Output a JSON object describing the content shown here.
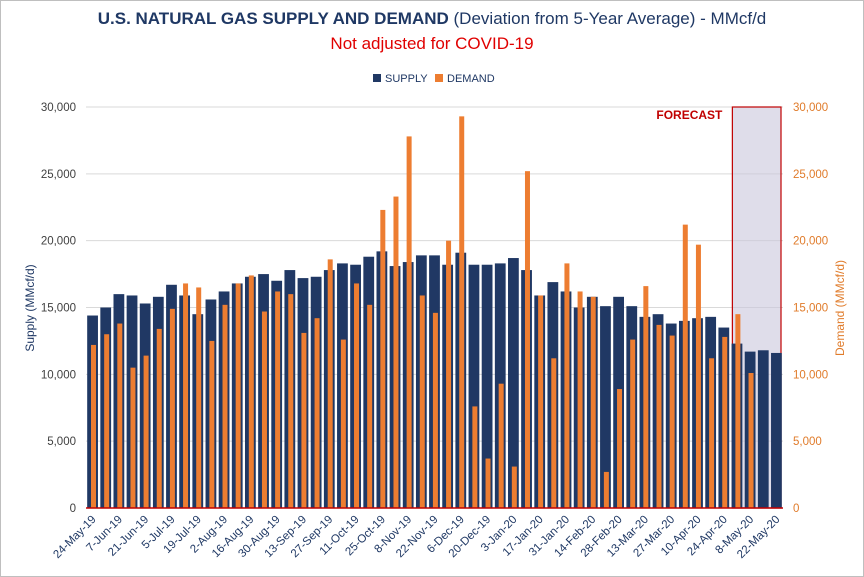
{
  "chart_data": {
    "type": "bar",
    "title_bold": "U.S. NATURAL GAS SUPPLY AND DEMAND",
    "title_rest": " (Deviation from 5-Year Average) - MMcf/d",
    "subtitle": "Not adjusted for COVID-19",
    "ylabel_left": "Supply (MMcf/d)",
    "ylabel_right": "Demand (MMcf/d)",
    "ylim": [
      0,
      30000
    ],
    "yticks": [
      "0",
      "5,000",
      "10,000",
      "15,000",
      "20,000",
      "25,000",
      "30,000"
    ],
    "ytick_values": [
      0,
      5000,
      10000,
      15000,
      20000,
      25000,
      30000
    ],
    "grid": true,
    "legend_position": "top-center",
    "colors": {
      "supply": "#203864",
      "demand": "#ed7d31",
      "forecast_border": "#c00000",
      "forecast_fill": "#c9c6dc",
      "title": "#1f3864",
      "subtitle": "#e00000"
    },
    "forecast_label": "FORECAST",
    "forecast_start_index": 49,
    "x_tick_labels": [
      "24-May-19",
      "7-Jun-19",
      "21-Jun-19",
      "5-Jul-19",
      "19-Jul-19",
      "2-Aug-19",
      "16-Aug-19",
      "30-Aug-19",
      "13-Sep-19",
      "27-Sep-19",
      "11-Oct-19",
      "25-Oct-19",
      "8-Nov-19",
      "22-Nov-19",
      "6-Dec-19",
      "20-Dec-19",
      "3-Jan-20",
      "17-Jan-20",
      "31-Jan-20",
      "14-Feb-20",
      "28-Feb-20",
      "13-Mar-20",
      "27-Mar-20",
      "10-Apr-20",
      "24-Apr-20",
      "8-May-20",
      "22-May-20"
    ],
    "series": [
      {
        "name": "SUPPLY",
        "values": [
          14400,
          15000,
          16000,
          15900,
          15300,
          15800,
          16700,
          15900,
          14500,
          15600,
          16200,
          16800,
          17300,
          17500,
          17000,
          17800,
          17200,
          17300,
          17800,
          18300,
          18200,
          18800,
          19200,
          18100,
          18400,
          18900,
          18900,
          18200,
          19100,
          18200,
          18200,
          18300,
          18700,
          17800,
          15900,
          16900,
          16200,
          15000,
          15800,
          15100,
          15800,
          15100,
          14300,
          14500,
          13800,
          14000,
          14200,
          14300,
          13500,
          12300,
          11700,
          11800,
          11600
        ]
      },
      {
        "name": "DEMAND",
        "values": [
          12200,
          13000,
          13800,
          10500,
          11400,
          13400,
          14900,
          16800,
          16500,
          12500,
          15200,
          16800,
          17400,
          14700,
          16200,
          16000,
          13100,
          14200,
          18600,
          12600,
          16800,
          15200,
          22300,
          23300,
          27800,
          15900,
          14600,
          20000,
          29300,
          7600,
          3700,
          9300,
          3100,
          25200,
          15900,
          11200,
          18300,
          16200,
          15800,
          2700,
          8900,
          12600,
          16600,
          13700,
          12900,
          21200,
          19700,
          11200,
          12800,
          14500,
          10100
        ]
      }
    ],
    "series_note": "Supply has 53 bars (last 4 in forecast); demand has 51 bars aligned starting at index 0 with a gap of 2 at the end"
  }
}
